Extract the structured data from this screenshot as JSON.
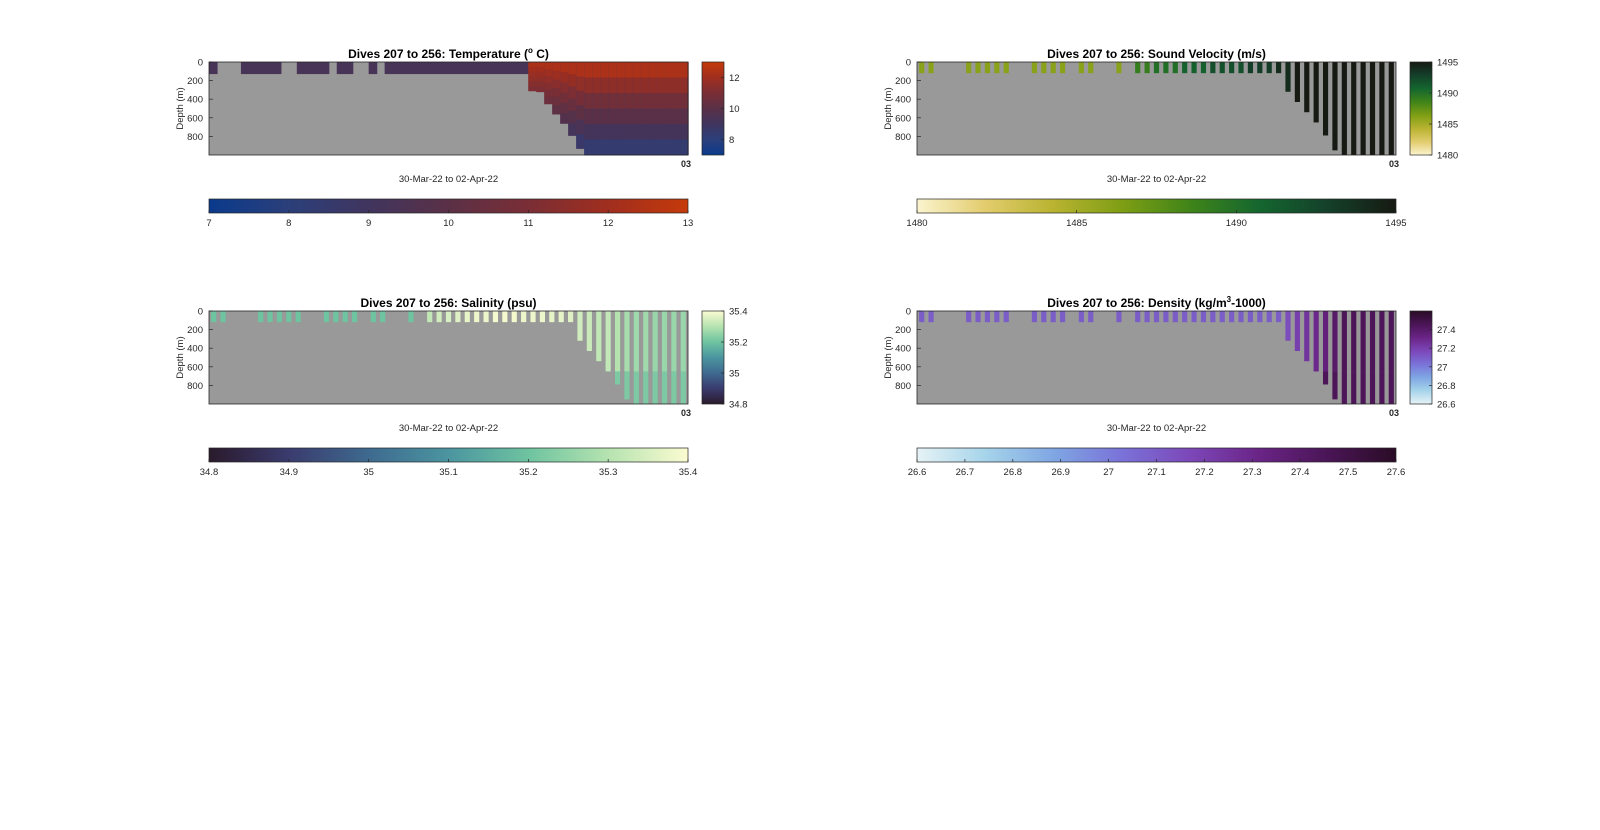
{
  "figure": {
    "date_range_label": "30-Mar-22 to 02-Apr-22",
    "end_tick_label": "03"
  },
  "chart_data": [
    {
      "id": "temperature",
      "type": "heatmap",
      "title": "Dives 207 to 256: Temperature (",
      "title_sup": "o",
      "title_end": " C)",
      "ylabel": "Depth (m)",
      "xlabel": "30-Mar-22 to 02-Apr-22",
      "ylim": [
        0,
        1000
      ],
      "yticks": [
        0,
        200,
        400,
        600,
        800
      ],
      "clim": [
        7,
        13
      ],
      "side_ticks": [
        8,
        10,
        12
      ],
      "bottom_ticks": [
        7,
        8,
        9,
        10,
        11,
        12,
        13
      ],
      "colormap": [
        "#0a3a8c",
        "#2b3f7a",
        "#40355e",
        "#5a3046",
        "#7a2e35",
        "#a02e1e",
        "#c53a0a"
      ],
      "background": "#999999",
      "render": "columns",
      "dive_depths": [
        130,
        0,
        0,
        0,
        130,
        130,
        130,
        130,
        130,
        0,
        0,
        130,
        130,
        130,
        130,
        0,
        130,
        130,
        0,
        0,
        130,
        0,
        130,
        130,
        130,
        130,
        130,
        130,
        130,
        130,
        130,
        130,
        130,
        130,
        130,
        130,
        130,
        130,
        130,
        130,
        310,
        320,
        450,
        560,
        660,
        790,
        930,
        1000,
        1000,
        1000,
        1000,
        1000,
        1000,
        1000,
        1000,
        1000,
        1000,
        1000,
        1000,
        1000
      ],
      "surface_value": 9.3,
      "deep_gradient": true
    },
    {
      "id": "sound-velocity",
      "type": "heatmap",
      "title": "Dives 207 to 256: Sound Velocity (m/s)",
      "title_sup": "",
      "title_end": "",
      "ylabel": "Depth (m)",
      "xlabel": "30-Mar-22 to 02-Apr-22",
      "ylim": [
        0,
        1000
      ],
      "yticks": [
        0,
        200,
        400,
        600,
        800
      ],
      "clim": [
        1480,
        1495
      ],
      "side_ticks": [
        1480,
        1485,
        1490,
        1495
      ],
      "bottom_ticks": [
        1480,
        1485,
        1490,
        1495
      ],
      "colormap": [
        "#fbf4cf",
        "#e2cc6d",
        "#b8b330",
        "#7e9e14",
        "#3f8419",
        "#14662f",
        "#14402a",
        "#161a12"
      ],
      "background": "#999999",
      "render": "bars",
      "bar_depths": [
        120,
        120,
        0,
        0,
        0,
        120,
        120,
        120,
        120,
        120,
        0,
        0,
        120,
        120,
        120,
        120,
        0,
        120,
        120,
        0,
        0,
        120,
        0,
        120,
        120,
        120,
        120,
        120,
        120,
        120,
        120,
        120,
        120,
        120,
        120,
        120,
        120,
        120,
        120,
        320,
        430,
        540,
        650,
        790,
        950,
        1000,
        1000,
        1000,
        1000,
        1000,
        1000
      ],
      "bar_values": [
        1486,
        1486,
        0,
        0,
        0,
        1486,
        1486,
        1486,
        1486,
        1486,
        0,
        0,
        1486,
        1486,
        1486,
        1486,
        0,
        1486,
        1486,
        0,
        0,
        1486,
        0,
        1489,
        1489,
        1490,
        1490,
        1490,
        1491,
        1491,
        1491,
        1492,
        1492,
        1492,
        1492,
        1493,
        1493,
        1493,
        1494,
        1494,
        1495,
        1495,
        1495,
        1495,
        1495,
        1495,
        1495,
        1495,
        1495,
        1495,
        1495
      ]
    },
    {
      "id": "salinity",
      "type": "heatmap",
      "title": "Dives 207 to 256: Salinity (psu)",
      "title_sup": "",
      "title_end": "",
      "ylabel": "Depth (m)",
      "xlabel": "30-Mar-22 to 02-Apr-22",
      "ylim": [
        0,
        1000
      ],
      "yticks": [
        0,
        200,
        400,
        600,
        800
      ],
      "clim": [
        34.8,
        35.4
      ],
      "side_ticks": [
        34.8,
        35,
        35.2,
        35.4
      ],
      "bottom_ticks": [
        34.8,
        34.9,
        35,
        35.1,
        35.2,
        35.3,
        35.4
      ],
      "colormap": [
        "#2a1a2c",
        "#3a3b6e",
        "#3e6a8f",
        "#4b95a0",
        "#6ec3a0",
        "#b5e3b0",
        "#fbfbd1"
      ],
      "background": "#999999",
      "render": "bars",
      "bar_depths": [
        120,
        120,
        0,
        0,
        0,
        120,
        120,
        120,
        120,
        120,
        0,
        0,
        120,
        120,
        120,
        120,
        0,
        120,
        120,
        0,
        0,
        120,
        0,
        120,
        120,
        120,
        120,
        120,
        120,
        120,
        120,
        120,
        120,
        120,
        120,
        120,
        120,
        120,
        120,
        320,
        430,
        540,
        650,
        790,
        950,
        1000,
        1000,
        1000,
        1000,
        1000,
        1000
      ],
      "bar_values": [
        35.2,
        35.2,
        0,
        0,
        0,
        35.2,
        35.2,
        35.2,
        35.2,
        35.2,
        0,
        0,
        35.2,
        35.2,
        35.2,
        35.2,
        0,
        35.2,
        35.2,
        0,
        0,
        35.2,
        0,
        35.32,
        35.34,
        35.35,
        35.36,
        35.37,
        35.38,
        35.38,
        35.39,
        35.39,
        35.39,
        35.38,
        35.38,
        35.38,
        35.37,
        35.37,
        35.36,
        35.34,
        35.33,
        35.32,
        35.32,
        35.3,
        35.28,
        35.27,
        35.27,
        35.26,
        35.26,
        35.26,
        35.26
      ],
      "bar_deep_value": 35.22
    },
    {
      "id": "density",
      "type": "heatmap",
      "title": "Dives 207 to 256: Density (kg/m",
      "title_sup": "3",
      "title_end": "-1000)",
      "ylabel": "Depth (m)",
      "xlabel": "30-Mar-22 to 02-Apr-22",
      "ylim": [
        0,
        1000
      ],
      "yticks": [
        0,
        200,
        400,
        600,
        800
      ],
      "clim": [
        26.6,
        27.6
      ],
      "side_ticks": [
        26.6,
        26.8,
        27,
        27.2,
        27.4
      ],
      "bottom_ticks": [
        26.6,
        26.7,
        26.8,
        26.9,
        27,
        27.1,
        27.2,
        27.3,
        27.4,
        27.5,
        27.6
      ],
      "colormap": [
        "#e6f3f6",
        "#a6d4ea",
        "#7fa6e3",
        "#7a72d8",
        "#7c47b8",
        "#6a2486",
        "#4a1556",
        "#2a0c26"
      ],
      "background": "#999999",
      "render": "bars",
      "bar_depths": [
        120,
        120,
        0,
        0,
        0,
        120,
        120,
        120,
        120,
        120,
        0,
        0,
        120,
        120,
        120,
        120,
        0,
        120,
        120,
        0,
        0,
        120,
        0,
        120,
        120,
        120,
        120,
        120,
        120,
        120,
        120,
        120,
        120,
        120,
        120,
        120,
        120,
        120,
        120,
        320,
        430,
        540,
        650,
        790,
        950,
        1000,
        1000,
        1000,
        1000,
        1000,
        1000
      ],
      "bar_values": [
        27.1,
        27.1,
        0,
        0,
        0,
        27.1,
        27.1,
        27.1,
        27.1,
        27.1,
        0,
        0,
        27.1,
        27.1,
        27.1,
        27.1,
        0,
        27.1,
        27.1,
        0,
        0,
        27.1,
        0,
        27.1,
        27.1,
        27.1,
        27.1,
        27.1,
        27.1,
        27.1,
        27.1,
        27.1,
        27.1,
        27.1,
        27.1,
        27.1,
        27.1,
        27.1,
        27.1,
        27.15,
        27.2,
        27.25,
        27.3,
        27.35,
        27.4,
        27.45,
        27.45,
        27.45,
        27.45,
        27.45,
        27.45
      ],
      "bar_deep_value": 27.45
    }
  ]
}
